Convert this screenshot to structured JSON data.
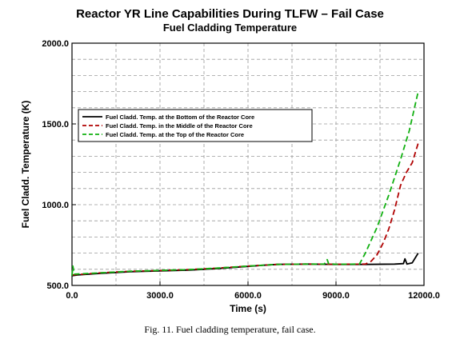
{
  "chart_data": {
    "type": "line",
    "title": "Reactor YR Line Capabilities During TLFW – Fail Case",
    "subtitle": "Fuel Cladding Temperature",
    "xlabel": "Time (s)",
    "ylabel": "Fuel Cladd. Temperature (K)",
    "xlim": [
      0,
      12000
    ],
    "ylim": [
      500,
      2000
    ],
    "x_ticks": [
      0,
      3000,
      6000,
      9000,
      12000
    ],
    "x_tick_labels": [
      "0.0",
      "3000.0",
      "6000.0",
      "9000.0",
      "12000.0"
    ],
    "y_ticks": [
      500,
      1000,
      1500,
      2000
    ],
    "y_tick_labels": [
      "500.0",
      "1000.0",
      "1500.0",
      "2000.0"
    ],
    "grid": true,
    "legend_position": "upper-left",
    "series": [
      {
        "name": "Fuel Cladd. Temp. at the Bottom of the Reactor Core",
        "color": "#000000",
        "dash": "solid",
        "points": [
          [
            0,
            560
          ],
          [
            200,
            565
          ],
          [
            1000,
            575
          ],
          [
            2000,
            585
          ],
          [
            3000,
            590
          ],
          [
            4000,
            595
          ],
          [
            5000,
            605
          ],
          [
            6000,
            618
          ],
          [
            6500,
            625
          ],
          [
            7000,
            630
          ],
          [
            8000,
            632
          ],
          [
            9000,
            630
          ],
          [
            10000,
            630
          ],
          [
            11000,
            632
          ],
          [
            11300,
            635
          ],
          [
            11350,
            665
          ],
          [
            11420,
            632
          ],
          [
            11600,
            640
          ],
          [
            11800,
            700
          ]
        ]
      },
      {
        "name": "Fuel Cladd. Temp. in the Middle of the Reactor Core",
        "color": "#b00000",
        "dash": "dashed",
        "points": [
          [
            0,
            565
          ],
          [
            1000,
            578
          ],
          [
            2000,
            588
          ],
          [
            3000,
            592
          ],
          [
            4000,
            598
          ],
          [
            5000,
            608
          ],
          [
            6000,
            620
          ],
          [
            7000,
            630
          ],
          [
            8000,
            632
          ],
          [
            9000,
            631
          ],
          [
            10000,
            632
          ],
          [
            10200,
            650
          ],
          [
            10400,
            690
          ],
          [
            10600,
            760
          ],
          [
            10800,
            850
          ],
          [
            11000,
            970
          ],
          [
            11200,
            1120
          ],
          [
            11400,
            1200
          ],
          [
            11600,
            1260
          ],
          [
            11800,
            1380
          ]
        ]
      },
      {
        "name": "Fuel Cladd. Temp. at the Top of the Reactor Core",
        "color": "#10b010",
        "dash": "dashed",
        "points": [
          [
            0,
            560
          ],
          [
            30,
            620
          ],
          [
            80,
            570
          ],
          [
            1000,
            578
          ],
          [
            2000,
            588
          ],
          [
            3000,
            593
          ],
          [
            4000,
            598
          ],
          [
            5000,
            608
          ],
          [
            6000,
            620
          ],
          [
            7000,
            630
          ],
          [
            8000,
            632
          ],
          [
            8600,
            632
          ],
          [
            8700,
            660
          ],
          [
            8750,
            634
          ],
          [
            9000,
            631
          ],
          [
            9800,
            632
          ],
          [
            10000,
            700
          ],
          [
            10400,
            860
          ],
          [
            10800,
            1060
          ],
          [
            11200,
            1280
          ],
          [
            11500,
            1460
          ],
          [
            11800,
            1700
          ]
        ]
      }
    ]
  },
  "caption": "Fig. 11.  Fuel cladding temperature, fail case."
}
